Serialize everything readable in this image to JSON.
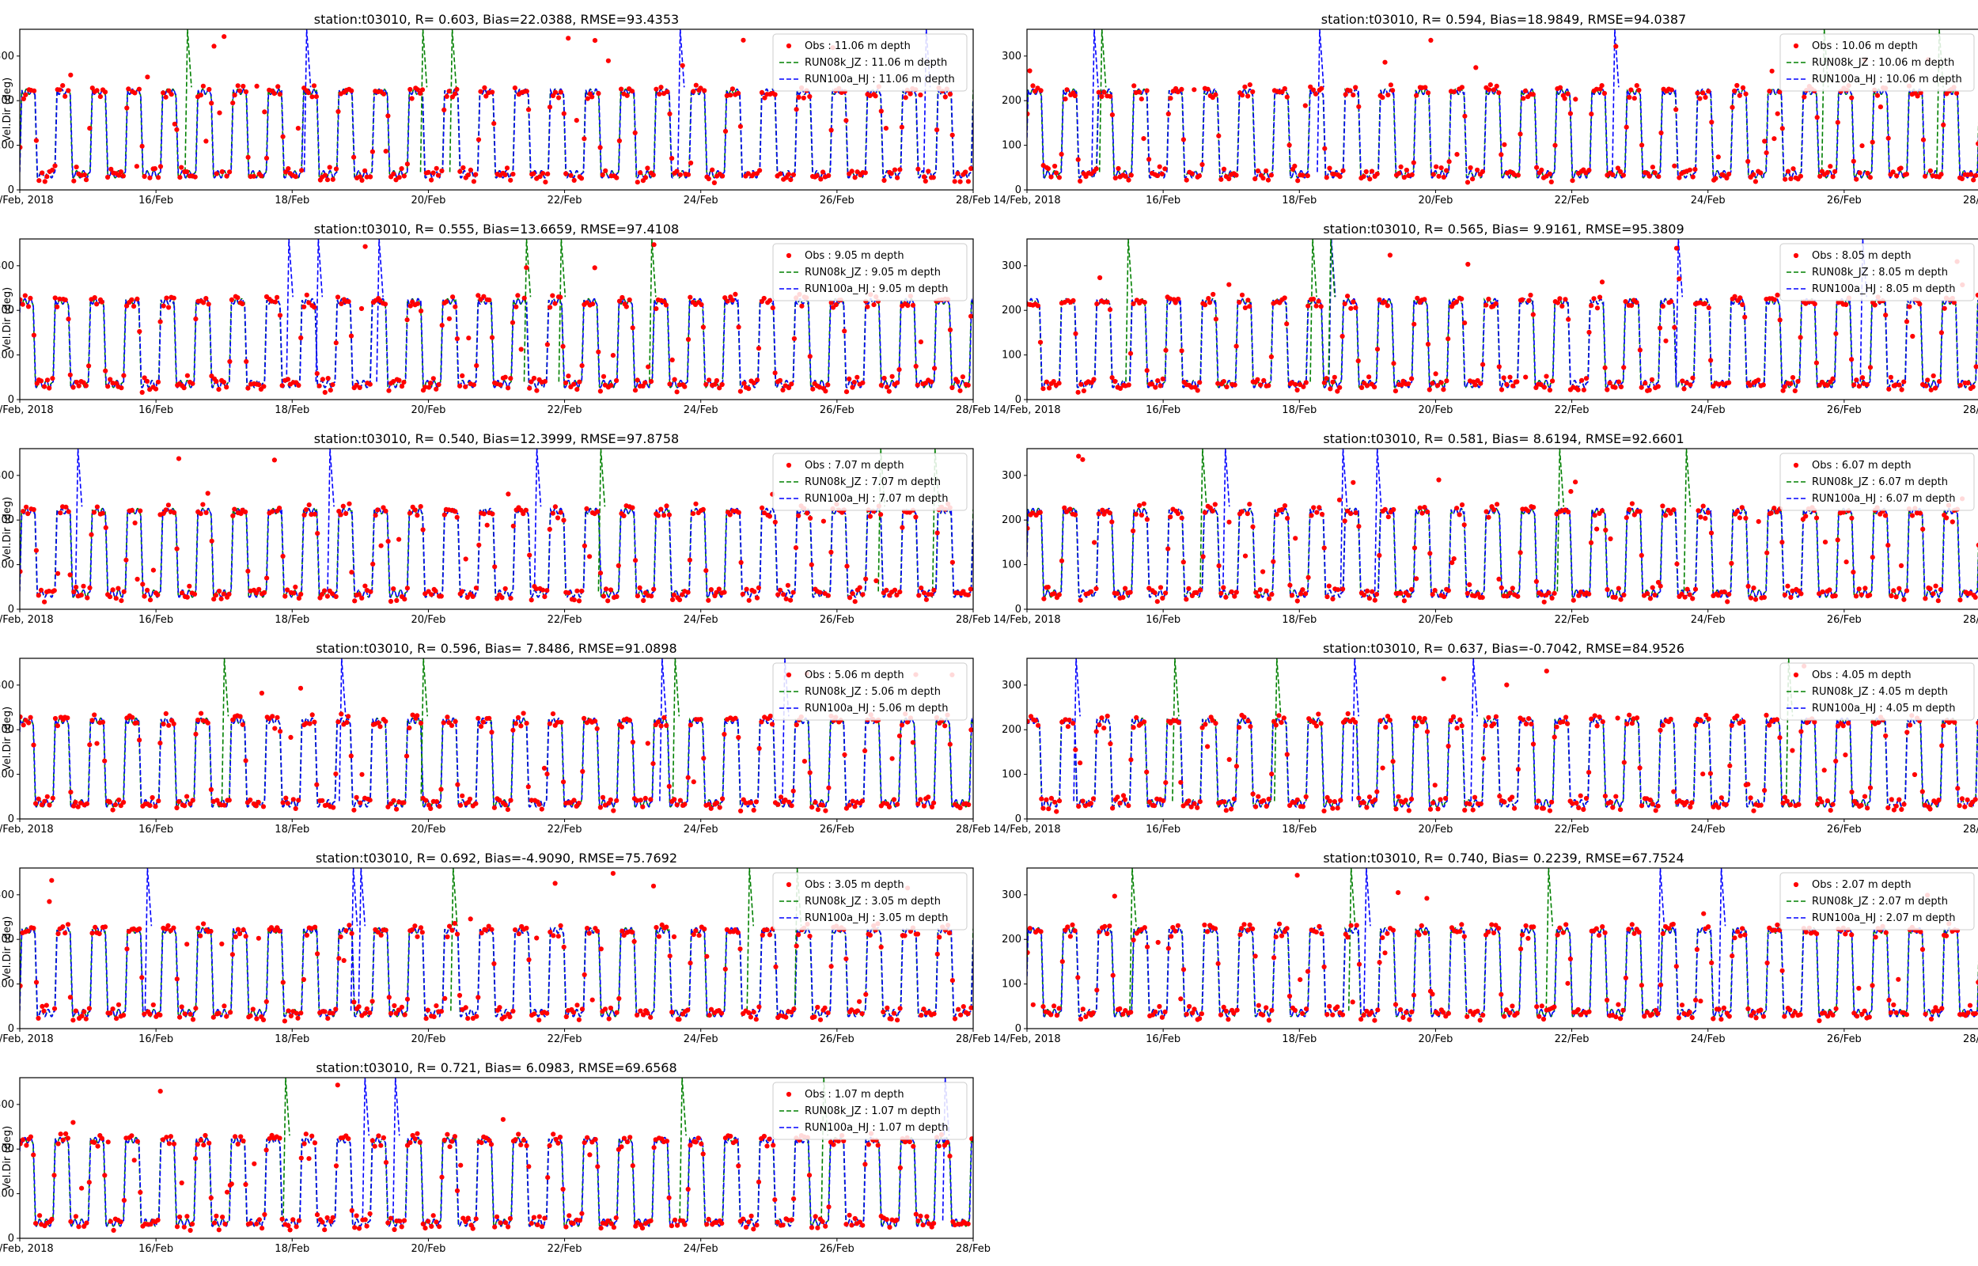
{
  "figure": {
    "colors": {
      "obs": "#ff0000",
      "run08k": "#008000",
      "run100a": "#0000ff",
      "axis": "#000000"
    },
    "common": {
      "ylabel": "Vel.Dir (deg)",
      "yticks": [
        0,
        100,
        200,
        300
      ],
      "ylim": [
        0,
        360
      ],
      "xticklabels": [
        "14/Feb, 2018",
        "16/Feb",
        "18/Feb",
        "20/Feb",
        "22/Feb",
        "24/Feb",
        "26/Feb",
        "28/Feb"
      ]
    }
  },
  "chart_data": [
    {
      "type": "scatter+line",
      "title": "station:t03010, R= 0.603, Bias=22.0388, RMSE=93.4353",
      "ylabel": "Vel.Dir (deg)",
      "x_range": [
        "2018-02-14",
        "2018-02-28"
      ],
      "ylim": [
        0,
        360
      ],
      "legend_position": "upper right",
      "series": [
        {
          "name": "Obs : 11.06 m depth",
          "style": "red dots"
        },
        {
          "name": "RUN08k_JZ : 11.06 m depth",
          "style": "green dashed"
        },
        {
          "name": "RUN100a_HJ : 11.06 m depth",
          "style": "blue dashed"
        }
      ]
    },
    {
      "type": "scatter+line",
      "title": "station:t03010, R= 0.594, Bias=18.9849, RMSE=94.0387",
      "ylabel": "",
      "x_range": [
        "2018-02-14",
        "2018-02-28"
      ],
      "ylim": [
        0,
        360
      ],
      "legend_position": "upper right",
      "series": [
        {
          "name": "Obs : 10.06 m depth",
          "style": "red dots"
        },
        {
          "name": "RUN08k_JZ : 10.06 m depth",
          "style": "green dashed"
        },
        {
          "name": "RUN100a_HJ : 10.06 m depth",
          "style": "blue dashed"
        }
      ]
    },
    {
      "type": "scatter+line",
      "title": "station:t03010, R= 0.555, Bias=13.6659, RMSE=97.4108",
      "ylabel": "Vel.Dir (deg)",
      "x_range": [
        "2018-02-14",
        "2018-02-28"
      ],
      "ylim": [
        0,
        360
      ],
      "legend_position": "upper right",
      "series": [
        {
          "name": "Obs : 9.05 m depth",
          "style": "red dots"
        },
        {
          "name": "RUN08k_JZ : 9.05 m depth",
          "style": "green dashed"
        },
        {
          "name": "RUN100a_HJ : 9.05 m depth",
          "style": "blue dashed"
        }
      ]
    },
    {
      "type": "scatter+line",
      "title": "station:t03010, R= 0.565, Bias= 9.9161, RMSE=95.3809",
      "ylabel": "",
      "x_range": [
        "2018-02-14",
        "2018-02-28"
      ],
      "ylim": [
        0,
        360
      ],
      "legend_position": "upper right",
      "series": [
        {
          "name": "Obs : 8.05 m depth",
          "style": "red dots"
        },
        {
          "name": "RUN08k_JZ : 8.05 m depth",
          "style": "green dashed"
        },
        {
          "name": "RUN100a_HJ : 8.05 m depth",
          "style": "blue dashed"
        }
      ]
    },
    {
      "type": "scatter+line",
      "title": "station:t03010, R= 0.540, Bias=12.3999, RMSE=97.8758",
      "ylabel": "Vel.Dir (deg)",
      "x_range": [
        "2018-02-14",
        "2018-02-28"
      ],
      "ylim": [
        0,
        360
      ],
      "legend_position": "upper right",
      "series": [
        {
          "name": "Obs : 7.07 m depth",
          "style": "red dots"
        },
        {
          "name": "RUN08k_JZ : 7.07 m depth",
          "style": "green dashed"
        },
        {
          "name": "RUN100a_HJ : 7.07 m depth",
          "style": "blue dashed"
        }
      ]
    },
    {
      "type": "scatter+line",
      "title": "station:t03010, R= 0.581, Bias= 8.6194, RMSE=92.6601",
      "ylabel": "",
      "x_range": [
        "2018-02-14",
        "2018-02-28"
      ],
      "ylim": [
        0,
        360
      ],
      "legend_position": "upper right",
      "series": [
        {
          "name": "Obs : 6.07 m depth",
          "style": "red dots"
        },
        {
          "name": "RUN08k_JZ : 6.07 m depth",
          "style": "green dashed"
        },
        {
          "name": "RUN100a_HJ : 6.07 m depth",
          "style": "blue dashed"
        }
      ]
    },
    {
      "type": "scatter+line",
      "title": "station:t03010, R= 0.596, Bias= 7.8486, RMSE=91.0898",
      "ylabel": "Vel.Dir (deg)",
      "x_range": [
        "2018-02-14",
        "2018-02-28"
      ],
      "ylim": [
        0,
        360
      ],
      "legend_position": "upper right",
      "series": [
        {
          "name": "Obs : 5.06 m depth",
          "style": "red dots"
        },
        {
          "name": "RUN08k_JZ : 5.06 m depth",
          "style": "green dashed"
        },
        {
          "name": "RUN100a_HJ : 5.06 m depth",
          "style": "blue dashed"
        }
      ]
    },
    {
      "type": "scatter+line",
      "title": "station:t03010, R= 0.637, Bias=-0.7042, RMSE=84.9526",
      "ylabel": "",
      "x_range": [
        "2018-02-14",
        "2018-02-28"
      ],
      "ylim": [
        0,
        360
      ],
      "legend_position": "upper right",
      "series": [
        {
          "name": "Obs : 4.05 m depth",
          "style": "red dots"
        },
        {
          "name": "RUN08k_JZ : 4.05 m depth",
          "style": "green dashed"
        },
        {
          "name": "RUN100a_HJ : 4.05 m depth",
          "style": "blue dashed"
        }
      ]
    },
    {
      "type": "scatter+line",
      "title": "station:t03010, R= 0.692, Bias=-4.9090, RMSE=75.7692",
      "ylabel": "Vel.Dir (deg)",
      "x_range": [
        "2018-02-14",
        "2018-02-28"
      ],
      "ylim": [
        0,
        360
      ],
      "legend_position": "upper right",
      "series": [
        {
          "name": "Obs : 3.05 m depth",
          "style": "red dots"
        },
        {
          "name": "RUN08k_JZ : 3.05 m depth",
          "style": "green dashed"
        },
        {
          "name": "RUN100a_HJ : 3.05 m depth",
          "style": "blue dashed"
        }
      ]
    },
    {
      "type": "scatter+line",
      "title": "station:t03010, R= 0.740, Bias= 0.2239, RMSE=67.7524",
      "ylabel": "",
      "x_range": [
        "2018-02-14",
        "2018-02-28"
      ],
      "ylim": [
        0,
        360
      ],
      "legend_position": "upper right",
      "series": [
        {
          "name": "Obs : 2.07 m depth",
          "style": "red dots"
        },
        {
          "name": "RUN08k_JZ : 2.07 m depth",
          "style": "green dashed"
        },
        {
          "name": "RUN100a_HJ : 2.07 m depth",
          "style": "blue dashed"
        }
      ]
    },
    {
      "type": "scatter+line",
      "title": "station:t03010, R= 0.721, Bias= 6.0983, RMSE=69.6568",
      "ylabel": "Vel.Dir (deg)",
      "x_range": [
        "2018-02-14",
        "2018-02-28"
      ],
      "ylim": [
        0,
        360
      ],
      "legend_position": "upper right",
      "series": [
        {
          "name": "Obs : 1.07 m depth",
          "style": "red dots"
        },
        {
          "name": "RUN08k_JZ : 1.07 m depth",
          "style": "green dashed"
        },
        {
          "name": "RUN100a_HJ : 1.07 m depth",
          "style": "blue dashed"
        }
      ]
    }
  ]
}
